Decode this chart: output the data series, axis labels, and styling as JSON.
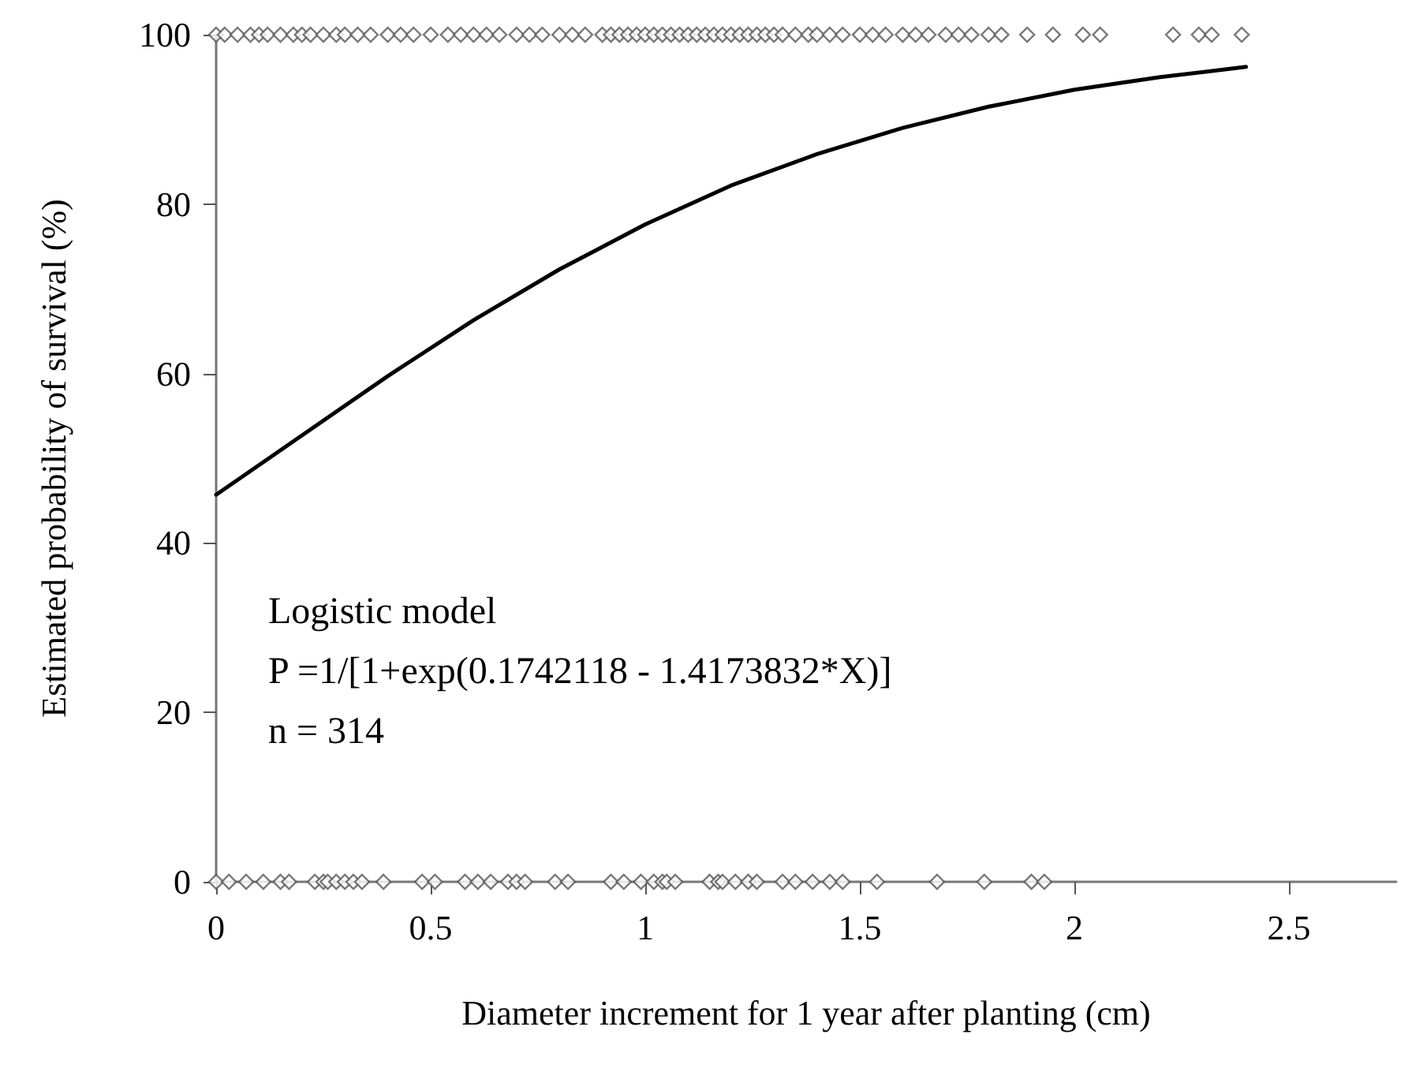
{
  "chart_data": {
    "type": "scatter",
    "xlabel": "Diameter increment for 1 year after planting (cm)",
    "ylabel": "Estimated probability of survival (%)",
    "xlim": [
      0,
      2.75
    ],
    "xticks": [
      0,
      0.5,
      1,
      1.5,
      2,
      2.5
    ],
    "ylim": [
      0,
      100
    ],
    "yticks": [
      0,
      20,
      40,
      60,
      80,
      100
    ],
    "grid": false,
    "marker": "diamond",
    "annotations": [
      "Logistic model",
      "P =1/[1+exp(0.1742118 - 1.4173832*X)]",
      "n = 314"
    ],
    "series": [
      {
        "type": "scatter",
        "color": "#555555",
        "x": [
          0,
          0.02,
          0.05,
          0.08,
          0.1,
          0.12,
          0.15,
          0.18,
          0.2,
          0.22,
          0.25,
          0.28,
          0.3,
          0.33,
          0.36,
          0.4,
          0.43,
          0.46,
          0.5,
          0.54,
          0.57,
          0.6,
          0.63,
          0.66,
          0.7,
          0.73,
          0.76,
          0.8,
          0.83,
          0.86,
          0.9,
          0.92,
          0.94,
          0.96,
          0.98,
          1.0,
          1.02,
          1.04,
          1.06,
          1.08,
          1.1,
          1.12,
          1.14,
          1.16,
          1.18,
          1.2,
          1.22,
          1.24,
          1.26,
          1.28,
          1.3,
          1.32,
          1.35,
          1.38,
          1.4,
          1.43,
          1.46,
          1.5,
          1.53,
          1.56,
          1.6,
          1.63,
          1.66,
          1.7,
          1.73,
          1.76,
          1.8,
          1.83,
          1.89,
          1.95,
          2.02,
          2.06,
          2.23,
          2.29,
          2.32,
          2.39
        ],
        "values": [
          100,
          100,
          100,
          100,
          100,
          100,
          100,
          100,
          100,
          100,
          100,
          100,
          100,
          100,
          100,
          100,
          100,
          100,
          100,
          100,
          100,
          100,
          100,
          100,
          100,
          100,
          100,
          100,
          100,
          100,
          100,
          100,
          100,
          100,
          100,
          100,
          100,
          100,
          100,
          100,
          100,
          100,
          100,
          100,
          100,
          100,
          100,
          100,
          100,
          100,
          100,
          100,
          100,
          100,
          100,
          100,
          100,
          100,
          100,
          100,
          100,
          100,
          100,
          100,
          100,
          100,
          100,
          100,
          100,
          100,
          100,
          100,
          100,
          100,
          100,
          100
        ]
      },
      {
        "type": "scatter",
        "color": "#555555",
        "x": [
          0,
          0.03,
          0.07,
          0.11,
          0.15,
          0.17,
          0.23,
          0.25,
          0.26,
          0.28,
          0.3,
          0.32,
          0.34,
          0.39,
          0.48,
          0.51,
          0.58,
          0.61,
          0.64,
          0.68,
          0.7,
          0.72,
          0.79,
          0.82,
          0.92,
          0.95,
          0.99,
          1.02,
          1.04,
          1.05,
          1.07,
          1.15,
          1.17,
          1.18,
          1.21,
          1.24,
          1.26,
          1.32,
          1.35,
          1.39,
          1.43,
          1.46,
          1.54,
          1.68,
          1.79,
          1.9,
          1.93
        ],
        "values": [
          0,
          0,
          0,
          0,
          0,
          0,
          0,
          0,
          0,
          0,
          0,
          0,
          0,
          0,
          0,
          0,
          0,
          0,
          0,
          0,
          0,
          0,
          0,
          0,
          0,
          0,
          0,
          0,
          0,
          0,
          0,
          0,
          0,
          0,
          0,
          0,
          0,
          0,
          0,
          0,
          0,
          0,
          0,
          0,
          0,
          0,
          0
        ]
      },
      {
        "type": "line",
        "color": "#000000",
        "marker": "none",
        "x": [
          0,
          0.2,
          0.4,
          0.6,
          0.8,
          1.0,
          1.2,
          1.4,
          1.6,
          1.8,
          2.0,
          2.2,
          2.4
        ],
        "values": [
          45.7,
          52.7,
          59.7,
          66.3,
          72.3,
          77.6,
          82.2,
          85.9,
          89.0,
          91.5,
          93.5,
          95.0,
          96.2
        ]
      }
    ]
  }
}
